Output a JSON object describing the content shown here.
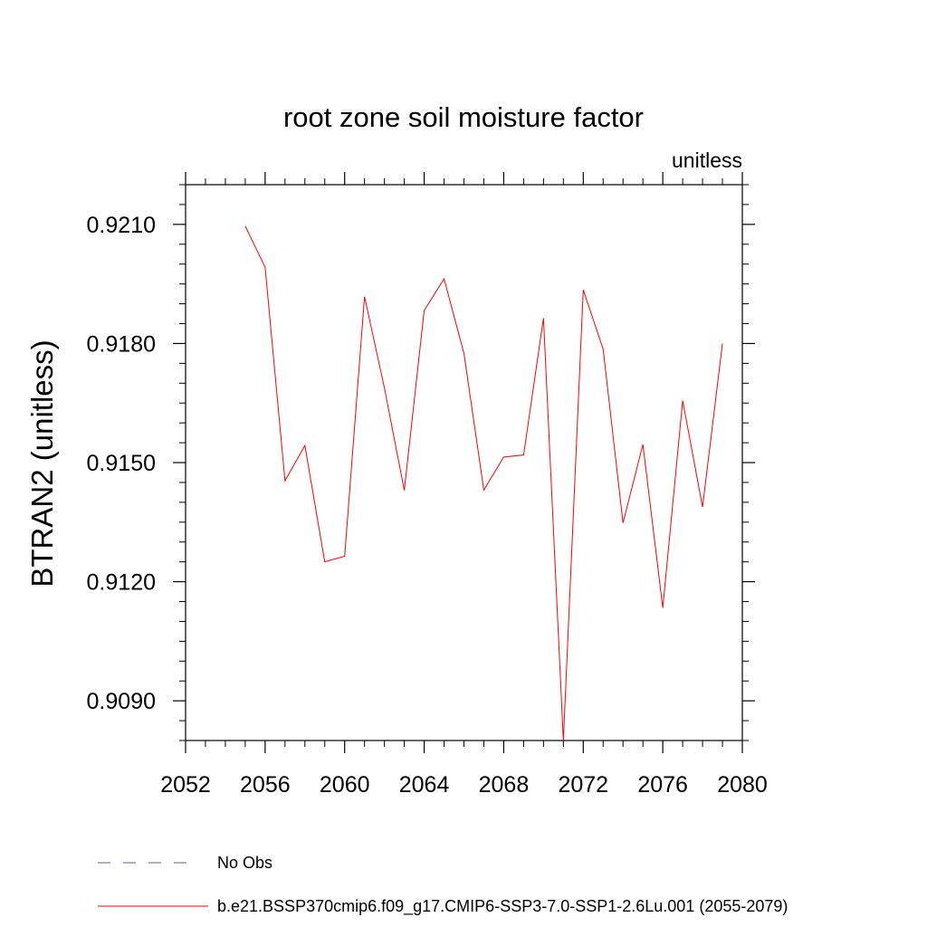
{
  "chart_data": {
    "type": "line",
    "title": "root zone soil moisture factor",
    "units_label": "unitless",
    "ylabel": "BTRAN2  (unitless)",
    "xlabel": "",
    "xlim": [
      2052,
      2080
    ],
    "ylim": [
      0.908,
      0.922
    ],
    "x_ticks": [
      2052,
      2056,
      2060,
      2064,
      2068,
      2072,
      2076,
      2080
    ],
    "x_tick_labels": [
      "2052",
      "2056",
      "2060",
      "2064",
      "2068",
      "2072",
      "2076",
      "2080"
    ],
    "y_ticks": [
      0.909,
      0.912,
      0.915,
      0.918,
      0.921
    ],
    "y_tick_labels": [
      "0.9090",
      "0.9120",
      "0.9150",
      "0.9180",
      "0.9210"
    ],
    "grid": false,
    "legend_placement": "bottom",
    "series": [
      {
        "name": "b.e21.BSSP370cmip6.f09_g17.CMIP6-SSP3-7.0-SSP1-2.6Lu.001 (2055-2079)",
        "color": "#ff0000",
        "style": "solid",
        "x": [
          2055,
          2056,
          2057,
          2058,
          2059,
          2060,
          2061,
          2062,
          2063,
          2064,
          2065,
          2066,
          2067,
          2068,
          2069,
          2070,
          2071,
          2072,
          2073,
          2074,
          2075,
          2076,
          2077,
          2078,
          2079
        ],
        "y": [
          0.92096,
          0.91992,
          0.91454,
          0.91543,
          0.9125,
          0.91264,
          0.91918,
          0.91688,
          0.9143,
          0.91883,
          0.91963,
          0.91775,
          0.91431,
          0.91514,
          0.91519,
          0.91864,
          0.908,
          0.91935,
          0.91786,
          0.91348,
          0.91546,
          0.91134,
          0.91656,
          0.91388,
          0.918
        ]
      },
      {
        "name": "No Obs",
        "color": "#6655aa",
        "style": "dashed",
        "x": [],
        "y": []
      }
    ]
  }
}
